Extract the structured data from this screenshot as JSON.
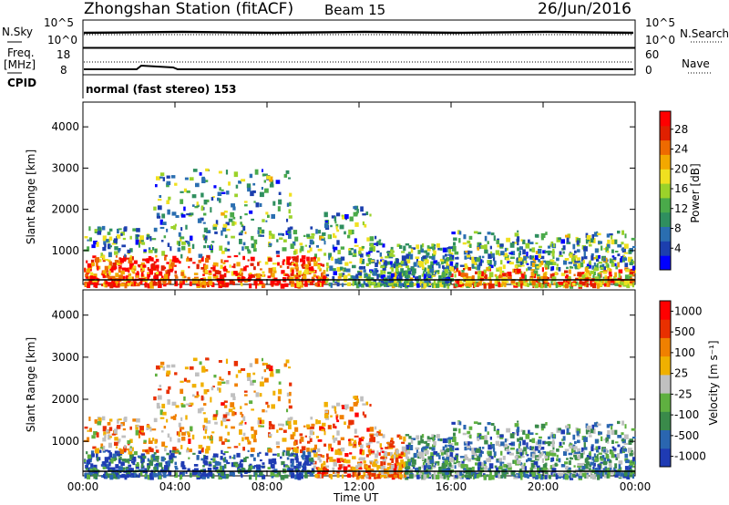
{
  "header": {
    "station": "Zhongshan Station (fitACF)",
    "beam": "Beam 15",
    "date": "26/Jun/2016"
  },
  "nsky_panel": {
    "left_label": "N.Sky",
    "right_label": "N.Search",
    "left_ticks": [
      "10^5",
      "10^0"
    ],
    "right_ticks": [
      "10^5",
      "10^0"
    ]
  },
  "freq_panel": {
    "left_label_line1": "Freq.",
    "left_label_line2": "[MHz]",
    "right_label": "Nave",
    "left_ticks": [
      "18",
      "8"
    ],
    "right_ticks": [
      "60",
      "0"
    ]
  },
  "cpid": {
    "label": "CPID",
    "mode_text": "normal (fast stereo) 153"
  },
  "chart_data": [
    {
      "type": "heatmap",
      "name": "power",
      "ylabel": "Slant Range [km]",
      "xlabel": "",
      "ylim": [
        180,
        4600
      ],
      "yticks": [
        "4000",
        "3000",
        "2000",
        "1000"
      ],
      "colorbar_label": "Power [dB]",
      "colorbar_ticks": [
        "28",
        "24",
        "20",
        "16",
        "12",
        "8",
        "4"
      ],
      "colors": [
        "#0000ff",
        "#1c3fae",
        "#2a6eb0",
        "#2f8f5f",
        "#4aaa4a",
        "#9bd22a",
        "#f0e020",
        "#f3a800",
        "#ee6a00",
        "#e02000",
        "#ff0000"
      ]
    },
    {
      "type": "heatmap",
      "name": "velocity",
      "ylabel": "Slant Range [km]",
      "xlabel": "Time UT",
      "ylim": [
        180,
        4600
      ],
      "yticks": [
        "4000",
        "3000",
        "2000",
        "1000"
      ],
      "xticks": [
        "00:00",
        "04:00",
        "08:00",
        "12:00",
        "16:00",
        "20:00",
        "00:00"
      ],
      "colorbar_label": "Velocity [m s⁻¹]",
      "colorbar_ticks": [
        "1000",
        "500",
        "100",
        "25",
        "-25",
        "-100",
        "-500",
        "-1000"
      ],
      "colors": [
        "#1f3bb3",
        "#2a66b0",
        "#3a8a4a",
        "#5fb040",
        "#c0c0c0",
        "#f0b000",
        "#f08000",
        "#e83000",
        "#ff0000"
      ]
    }
  ]
}
